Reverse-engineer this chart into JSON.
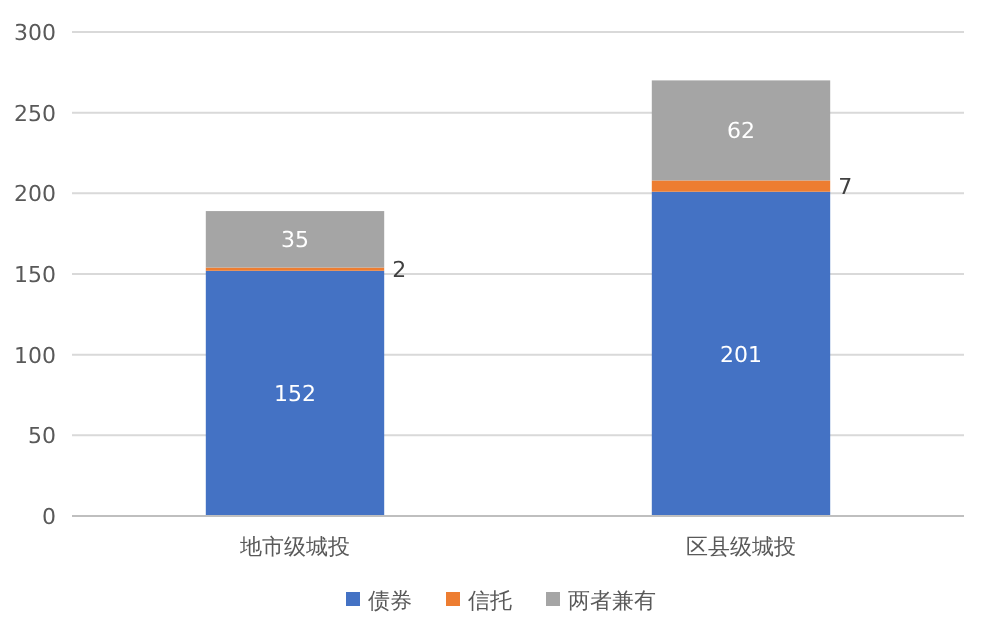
{
  "chart_data": {
    "type": "bar",
    "stacked": true,
    "categories": [
      "地市级城投",
      "区县级城投"
    ],
    "series": [
      {
        "name": "债券",
        "color": "#4472c4",
        "values": [
          152,
          201
        ]
      },
      {
        "name": "信托",
        "color": "#ed7d31",
        "values": [
          2,
          7
        ]
      },
      {
        "name": "两者兼有",
        "color": "#a5a5a5",
        "values": [
          35,
          62
        ]
      }
    ],
    "ylim": [
      0,
      300
    ],
    "yticks": [
      0,
      50,
      100,
      150,
      200,
      250,
      300
    ],
    "grid": "y",
    "legend": "bottom",
    "data_labels": true
  }
}
